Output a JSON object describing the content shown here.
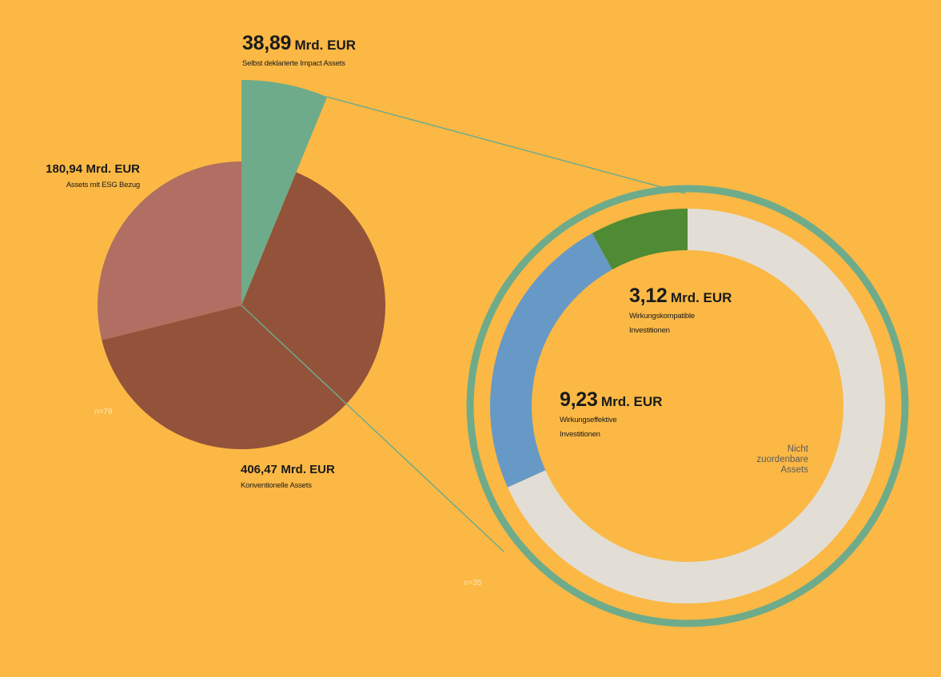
{
  "chart_data": [
    {
      "type": "pie",
      "title": "",
      "slices": [
        {
          "name": "Selbst deklarierte Impact Assets",
          "value": 38.89,
          "value_label": "38,89",
          "unit": "Mrd. EUR",
          "color": "#6EAB8B"
        },
        {
          "name": "Konventionelle Assets",
          "value": 406.47,
          "value_label": "406,47",
          "unit": "Mrd. EUR",
          "color": "#93523A"
        },
        {
          "name": "Assets mit ESG Bezug",
          "value": 180.94,
          "value_label": "180,94",
          "unit": "Mrd. EUR",
          "color": "#B06F62"
        }
      ],
      "note": "n=79"
    },
    {
      "type": "pie",
      "subtype": "donut",
      "title": "",
      "slices": [
        {
          "name": "Wirkungskompatible Investitionen",
          "value": 3.12,
          "value_label": "3,12",
          "unit": "Mrd. EUR",
          "color": "#4F8A34"
        },
        {
          "name": "Wirkungseffektive Investitionen",
          "value": 9.23,
          "value_label": "9,23",
          "unit": "Mrd. EUR",
          "color": "#6699C6"
        },
        {
          "name": "Nicht zuordenbare Assets",
          "value": 26.54,
          "color": "#E2DED6"
        }
      ],
      "note": "n=35"
    }
  ],
  "labels": {
    "impact": {
      "value": "38,89",
      "unit": "Mrd. EUR",
      "desc": "Selbst deklarierte Impact Assets"
    },
    "esg": {
      "value": "180,94",
      "unit": "Mrd. EUR",
      "desc": "Assets mit ESG Bezug"
    },
    "conv": {
      "value": "406,47",
      "unit": "Mrd. EUR",
      "desc": "Konventionelle Assets"
    },
    "kompatibel": {
      "value": "3,12",
      "unit": "Mrd. EUR",
      "desc1": "Wirkungskompatible",
      "desc2": "Investitionen"
    },
    "effektiv": {
      "value": "9,23",
      "unit": "Mrd. EUR",
      "desc1": "Wirkungseffektive",
      "desc2": "Investitionen"
    },
    "nicht": {
      "line1": "Nicht",
      "line2": "zuordenbare",
      "line3": "Assets"
    },
    "n_left": "n=79",
    "n_right": "n=35"
  }
}
